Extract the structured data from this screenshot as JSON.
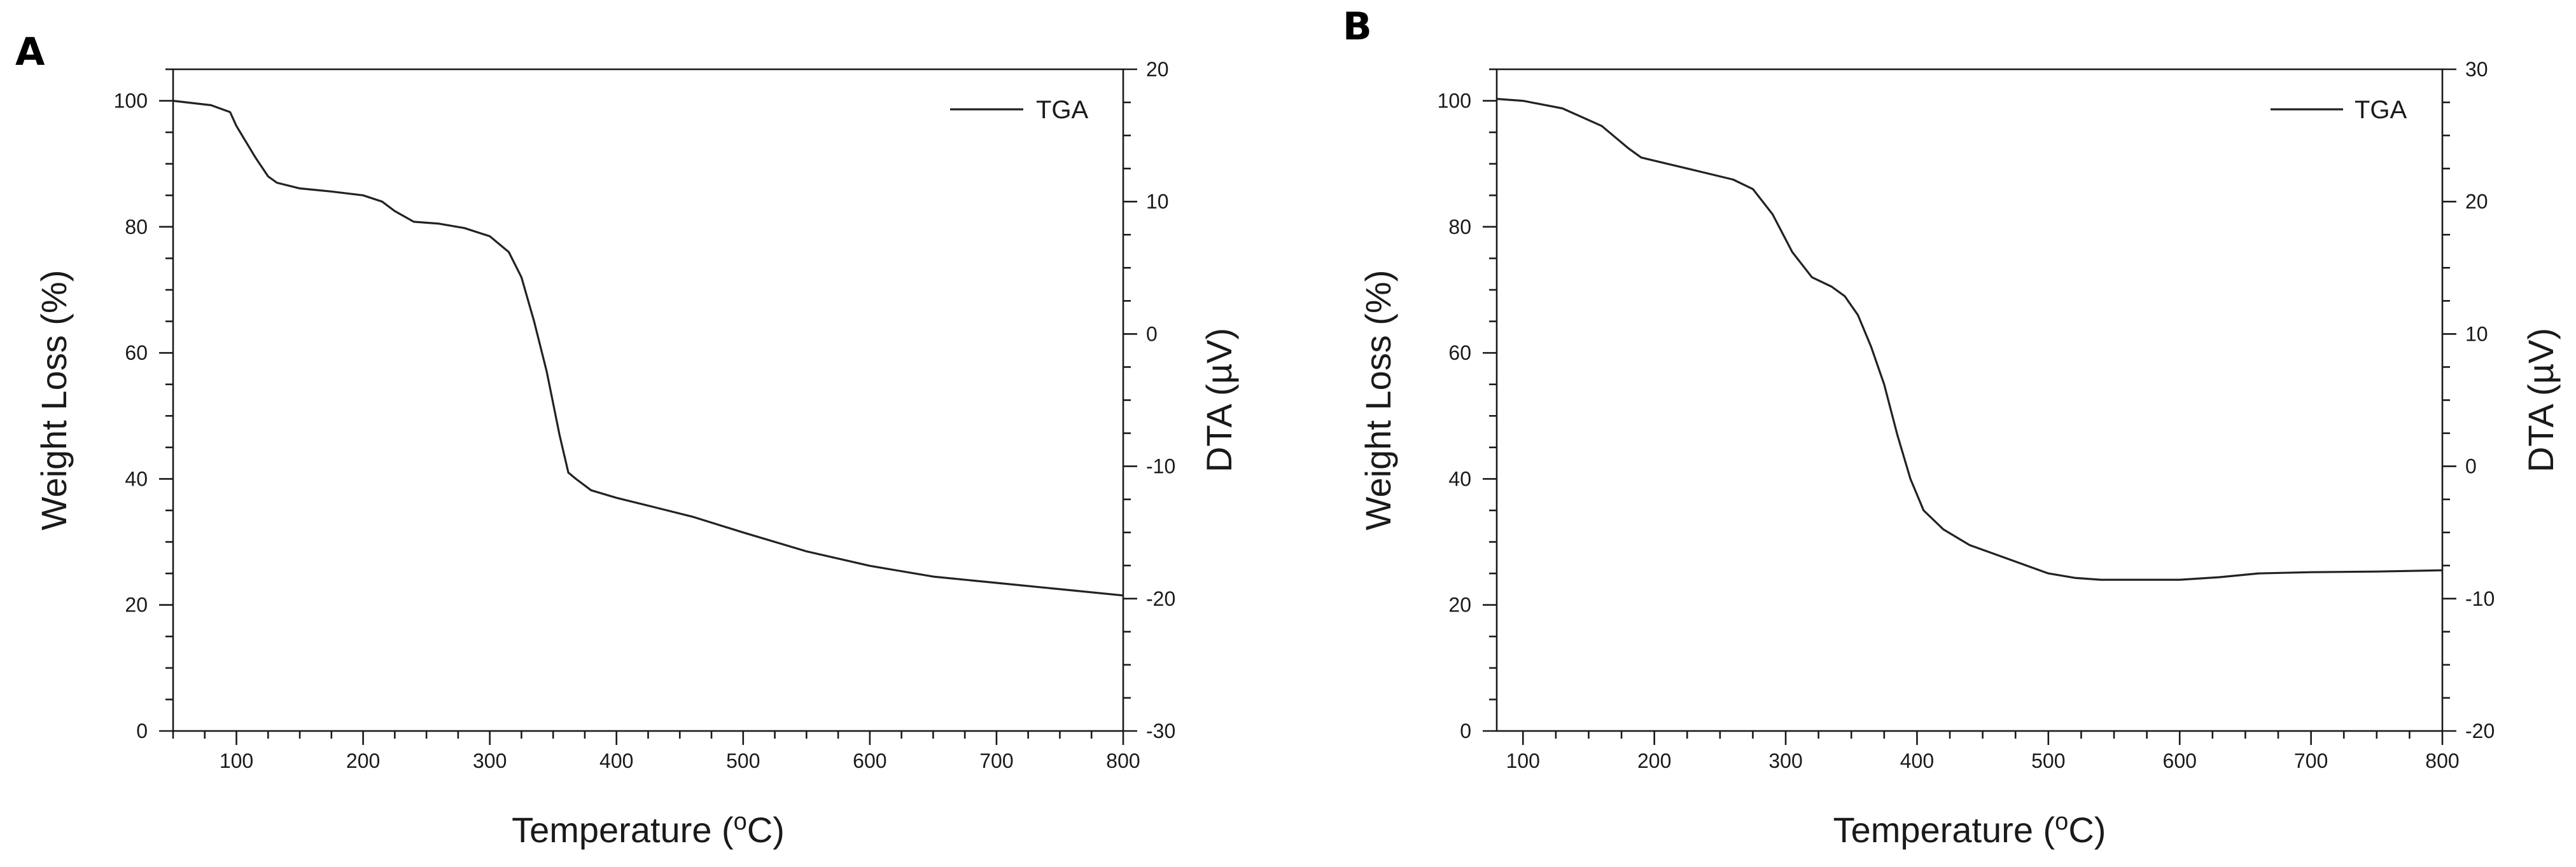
{
  "chart_data": [
    {
      "panel_label": "A",
      "type": "line",
      "xlabel": "Temperature (",
      "xlabel_unit_sup": "o",
      "xlabel_unit_tail": "C)",
      "ylabel": "Weight Loss (%)",
      "y2label": "DTA (µV)",
      "xlim": [
        50,
        800
      ],
      "ylim": [
        0,
        105
      ],
      "y2lim": [
        -30,
        20
      ],
      "xticks": [
        100,
        200,
        300,
        400,
        500,
        600,
        700,
        800
      ],
      "yticks": [
        0,
        20,
        40,
        60,
        80,
        100
      ],
      "y2ticks": [
        -30,
        -20,
        -10,
        0,
        10,
        20
      ],
      "legend": "TGA",
      "series": [
        {
          "name": "TGA",
          "x": [
            50,
            80,
            95,
            100,
            115,
            125,
            132,
            150,
            175,
            200,
            215,
            225,
            240,
            260,
            280,
            300,
            315,
            325,
            335,
            345,
            355,
            362,
            368,
            380,
            400,
            430,
            460,
            500,
            550,
            600,
            650,
            700,
            750,
            800
          ],
          "y": [
            100,
            99.3,
            98.2,
            96,
            91,
            88,
            87,
            86.1,
            85.6,
            85,
            84,
            82.5,
            80.8,
            80.5,
            79.8,
            78.5,
            76,
            72,
            65,
            57,
            47,
            41,
            40,
            38.2,
            37,
            35.5,
            34,
            31.5,
            28.5,
            26.2,
            24.5,
            23.5,
            22.5,
            21.5
          ]
        }
      ]
    },
    {
      "panel_label": "B",
      "type": "line",
      "xlabel": "Temperature (",
      "xlabel_unit_sup": "o",
      "xlabel_unit_tail": "C)",
      "ylabel": "Weight Loss (%)",
      "y2label": "DTA (µV)",
      "xlim": [
        80,
        800
      ],
      "ylim": [
        0,
        105
      ],
      "y2lim": [
        -20,
        30
      ],
      "xticks": [
        100,
        200,
        300,
        400,
        500,
        600,
        700,
        800
      ],
      "yticks": [
        0,
        20,
        40,
        60,
        80,
        100
      ],
      "y2ticks": [
        -20,
        -10,
        0,
        10,
        20,
        30
      ],
      "legend": "TGA",
      "series": [
        {
          "name": "TGA",
          "x": [
            80,
            100,
            130,
            160,
            180,
            190,
            200,
            230,
            260,
            275,
            290,
            305,
            320,
            335,
            345,
            355,
            365,
            375,
            385,
            395,
            405,
            420,
            440,
            460,
            480,
            500,
            520,
            540,
            560,
            600,
            630,
            660,
            700,
            750,
            800
          ],
          "y": [
            100.3,
            100,
            98.8,
            96,
            92.5,
            91,
            90.5,
            89,
            87.5,
            86,
            82,
            76,
            72,
            70.5,
            69,
            66,
            61,
            55,
            47,
            40,
            35,
            32,
            29.5,
            28,
            26.5,
            25,
            24.3,
            24,
            24,
            24,
            24.4,
            25,
            25.2,
            25.3,
            25.5
          ]
        }
      ]
    }
  ]
}
